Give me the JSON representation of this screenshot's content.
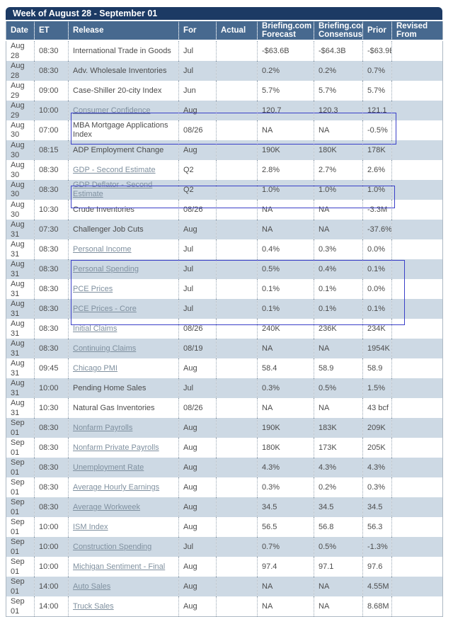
{
  "table": {
    "title": "Week of August 28 - September 01",
    "colors": {
      "title_bar_bg": "#1c3a64",
      "header_bg": "#47698f",
      "alt_row_bg": "#cdd9e4",
      "highlight_box_border": "#3a40c8",
      "link_color": "#7f909f",
      "body_text": "#4c4c4c"
    },
    "columns": [
      {
        "key": "date",
        "label": "Date"
      },
      {
        "key": "et",
        "label": "ET"
      },
      {
        "key": "release",
        "label": "Release"
      },
      {
        "key": "for",
        "label": "For"
      },
      {
        "key": "actual",
        "label": "Actual"
      },
      {
        "key": "forecast",
        "label": "Briefing.com Forecast"
      },
      {
        "key": "consensus",
        "label": "Briefing.com Consensus"
      },
      {
        "key": "prior",
        "label": "Prior"
      },
      {
        "key": "revised",
        "label": "Revised From"
      }
    ],
    "rows": [
      {
        "date": "Aug 28",
        "et": "08:30",
        "release": "International Trade in Goods",
        "link": false,
        "tall": false,
        "for": "Jul",
        "actual": "",
        "forecast": "-$63.6B",
        "consensus": "-$64.3B",
        "prior": "-$63.9B",
        "revised": ""
      },
      {
        "date": "Aug 28",
        "et": "08:30",
        "release": "Adv. Wholesale Inventories",
        "link": false,
        "tall": false,
        "for": "Jul",
        "actual": "",
        "forecast": "0.2%",
        "consensus": "0.2%",
        "prior": "0.7%",
        "revised": ""
      },
      {
        "date": "Aug 29",
        "et": "09:00",
        "release": "Case-Shiller 20-city Index",
        "link": false,
        "tall": false,
        "for": "Jun",
        "actual": "",
        "forecast": "5.7%",
        "consensus": "5.7%",
        "prior": "5.7%",
        "revised": ""
      },
      {
        "date": "Aug 29",
        "et": "10:00",
        "release": "Consumer Confidence",
        "link": true,
        "tall": false,
        "for": "Aug",
        "actual": "",
        "forecast": "120.7",
        "consensus": "120.3",
        "prior": "121.1",
        "revised": ""
      },
      {
        "date": "Aug 30",
        "et": "07:00",
        "release": "MBA Mortgage Applications Index",
        "link": false,
        "tall": true,
        "for": "08/26",
        "actual": "",
        "forecast": "NA",
        "consensus": "NA",
        "prior": "-0.5%",
        "revised": ""
      },
      {
        "date": "Aug 30",
        "et": "08:15",
        "release": "ADP Employment Change",
        "link": false,
        "tall": false,
        "for": "Aug",
        "actual": "",
        "forecast": "190K",
        "consensus": "180K",
        "prior": "178K",
        "revised": ""
      },
      {
        "date": "Aug 30",
        "et": "08:30",
        "release": "GDP - Second Estimate",
        "link": true,
        "tall": false,
        "for": "Q2",
        "actual": "",
        "forecast": "2.8%",
        "consensus": "2.7%",
        "prior": "2.6%",
        "revised": ""
      },
      {
        "date": "Aug 30",
        "et": "08:30",
        "release": "GDP Deflator - Second Estimate",
        "link": true,
        "tall": true,
        "for": "Q2",
        "actual": "",
        "forecast": "1.0%",
        "consensus": "1.0%",
        "prior": "1.0%",
        "revised": ""
      },
      {
        "date": "Aug 30",
        "et": "10:30",
        "release": "Crude Inventories",
        "link": false,
        "tall": false,
        "for": "08/26",
        "actual": "",
        "forecast": "NA",
        "consensus": "NA",
        "prior": "-3.3M",
        "revised": ""
      },
      {
        "date": "Aug 31",
        "et": "07:30",
        "release": "Challenger Job Cuts",
        "link": false,
        "tall": false,
        "for": "Aug",
        "actual": "",
        "forecast": "NA",
        "consensus": "NA",
        "prior": "-37.6%",
        "revised": ""
      },
      {
        "date": "Aug 31",
        "et": "08:30",
        "release": "Personal Income",
        "link": true,
        "tall": false,
        "for": "Jul",
        "actual": "",
        "forecast": "0.4%",
        "consensus": "0.3%",
        "prior": "0.0%",
        "revised": ""
      },
      {
        "date": "Aug 31",
        "et": "08:30",
        "release": "Personal Spending",
        "link": true,
        "tall": false,
        "for": "Jul",
        "actual": "",
        "forecast": "0.5%",
        "consensus": "0.4%",
        "prior": "0.1%",
        "revised": ""
      },
      {
        "date": "Aug 31",
        "et": "08:30",
        "release": "PCE Prices",
        "link": true,
        "tall": false,
        "for": "Jul",
        "actual": "",
        "forecast": "0.1%",
        "consensus": "0.1%",
        "prior": "0.0%",
        "revised": ""
      },
      {
        "date": "Aug 31",
        "et": "08:30",
        "release": "PCE Prices - Core",
        "link": true,
        "tall": false,
        "for": "Jul",
        "actual": "",
        "forecast": "0.1%",
        "consensus": "0.1%",
        "prior": "0.1%",
        "revised": ""
      },
      {
        "date": "Aug 31",
        "et": "08:30",
        "release": "Initial Claims",
        "link": true,
        "tall": false,
        "for": "08/26",
        "actual": "",
        "forecast": "240K",
        "consensus": "236K",
        "prior": "234K",
        "revised": ""
      },
      {
        "date": "Aug 31",
        "et": "08:30",
        "release": "Continuing Claims",
        "link": true,
        "tall": false,
        "for": "08/19",
        "actual": "",
        "forecast": "NA",
        "consensus": "NA",
        "prior": "1954K",
        "revised": ""
      },
      {
        "date": "Aug 31",
        "et": "09:45",
        "release": "Chicago PMI",
        "link": true,
        "tall": false,
        "for": "Aug",
        "actual": "",
        "forecast": "58.4",
        "consensus": "58.9",
        "prior": "58.9",
        "revised": ""
      },
      {
        "date": "Aug 31",
        "et": "10:00",
        "release": "Pending Home Sales",
        "link": false,
        "tall": false,
        "for": "Jul",
        "actual": "",
        "forecast": "0.3%",
        "consensus": "0.5%",
        "prior": "1.5%",
        "revised": ""
      },
      {
        "date": "Aug 31",
        "et": "10:30",
        "release": "Natural Gas Inventories",
        "link": false,
        "tall": false,
        "for": "08/26",
        "actual": "",
        "forecast": "NA",
        "consensus": "NA",
        "prior": "43 bcf",
        "revised": ""
      },
      {
        "date": "Sep 01",
        "et": "08:30",
        "release": "Nonfarm Payrolls",
        "link": true,
        "tall": false,
        "for": "Aug",
        "actual": "",
        "forecast": "190K",
        "consensus": "183K",
        "prior": "209K",
        "revised": ""
      },
      {
        "date": "Sep 01",
        "et": "08:30",
        "release": "Nonfarm Private Payrolls",
        "link": true,
        "tall": false,
        "for": "Aug",
        "actual": "",
        "forecast": "180K",
        "consensus": "173K",
        "prior": "205K",
        "revised": ""
      },
      {
        "date": "Sep 01",
        "et": "08:30",
        "release": "Unemployment Rate",
        "link": true,
        "tall": false,
        "for": "Aug",
        "actual": "",
        "forecast": "4.3%",
        "consensus": "4.3%",
        "prior": "4.3%",
        "revised": ""
      },
      {
        "date": "Sep 01",
        "et": "08:30",
        "release": "Average Hourly Earnings",
        "link": true,
        "tall": false,
        "for": "Aug",
        "actual": "",
        "forecast": "0.3%",
        "consensus": "0.2%",
        "prior": "0.3%",
        "revised": ""
      },
      {
        "date": "Sep 01",
        "et": "08:30",
        "release": "Average Workweek",
        "link": true,
        "tall": false,
        "for": "Aug",
        "actual": "",
        "forecast": "34.5",
        "consensus": "34.5",
        "prior": "34.5",
        "revised": ""
      },
      {
        "date": "Sep 01",
        "et": "10:00",
        "release": "ISM Index",
        "link": true,
        "tall": false,
        "for": "Aug",
        "actual": "",
        "forecast": "56.5",
        "consensus": "56.8",
        "prior": "56.3",
        "revised": ""
      },
      {
        "date": "Sep 01",
        "et": "10:00",
        "release": "Construction Spending",
        "link": true,
        "tall": false,
        "for": "Jul",
        "actual": "",
        "forecast": "0.7%",
        "consensus": "0.5%",
        "prior": "-1.3%",
        "revised": ""
      },
      {
        "date": "Sep 01",
        "et": "10:00",
        "release": "Michigan Sentiment - Final",
        "link": true,
        "tall": false,
        "for": "Aug",
        "actual": "",
        "forecast": "97.4",
        "consensus": "97.1",
        "prior": "97.6",
        "revised": ""
      },
      {
        "date": "Sep 01",
        "et": "14:00",
        "release": "Auto Sales",
        "link": true,
        "tall": false,
        "for": "Aug",
        "actual": "",
        "forecast": "NA",
        "consensus": "NA",
        "prior": "4.55M",
        "revised": ""
      },
      {
        "date": "Sep 01",
        "et": "14:00",
        "release": "Truck Sales",
        "link": true,
        "tall": false,
        "for": "Aug",
        "actual": "",
        "forecast": "NA",
        "consensus": "NA",
        "prior": "8.68M",
        "revised": ""
      }
    ],
    "highlight_groups": [
      {
        "releases": "GDP - Second Estimate, GDP Deflator - Second Estimate"
      },
      {
        "releases": "PCE Prices, PCE Prices - Core"
      },
      {
        "releases": "Nonfarm Payrolls, Nonfarm Private Payrolls, Unemployment Rate, Average Hourly Earnings, Average Workweek, ISM Index"
      }
    ]
  }
}
